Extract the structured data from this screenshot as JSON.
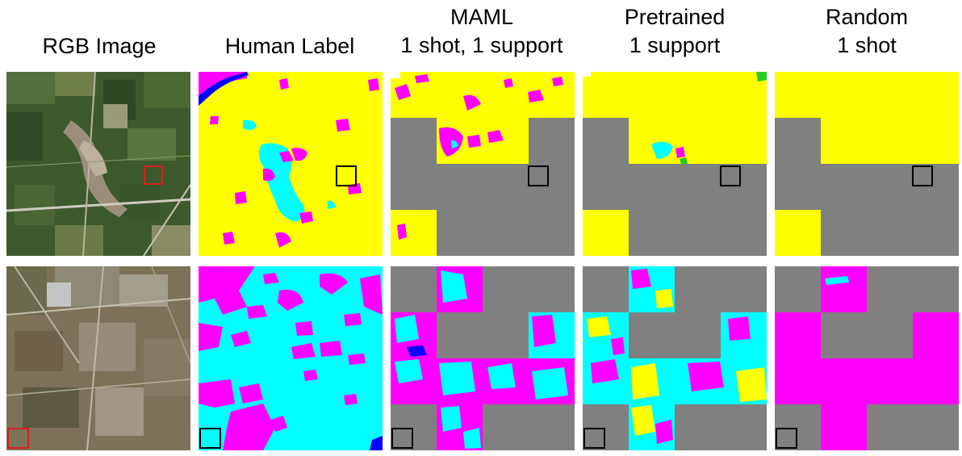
{
  "columns": [
    {
      "lines": [
        "RGB Image"
      ]
    },
    {
      "lines": [
        "Human Label"
      ]
    },
    {
      "lines": [
        "MAML",
        "1 shot, 1 support"
      ]
    },
    {
      "lines": [
        "Pretrained",
        "1 support"
      ]
    },
    {
      "lines": [
        "Random",
        "1 shot"
      ]
    }
  ],
  "legend_colors": {
    "yellow": "#ffff00",
    "magenta": "#ff00ff",
    "cyan": "#00ffff",
    "gray": "#808080",
    "blue": "#0000ff",
    "green": "#22cc22"
  },
  "marker_colors": {
    "rgb": "#d62020",
    "label": "#000000"
  }
}
